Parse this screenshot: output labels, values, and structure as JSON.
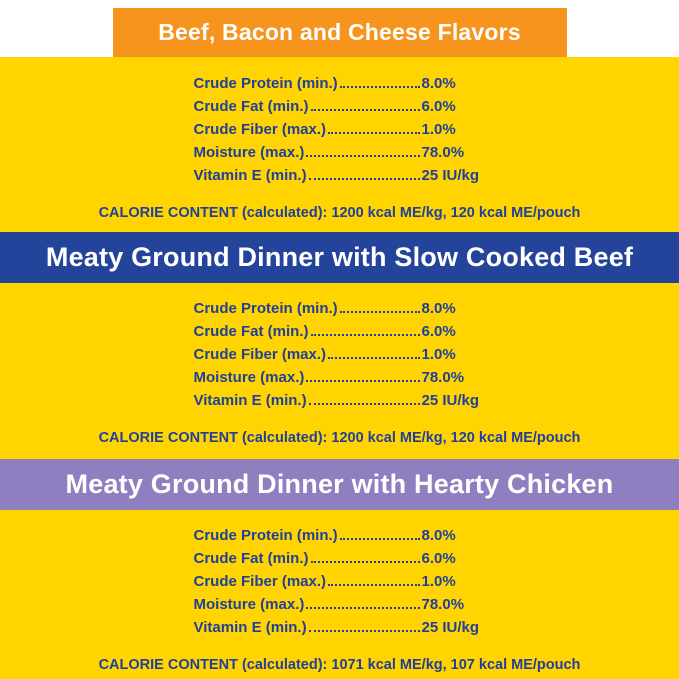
{
  "colors": {
    "yellow": "#FFD400",
    "orange": "#F7941D",
    "blue": "#24449B",
    "purple": "#8F7FC0",
    "navy_text": "#21409A",
    "banner_text": "#FFFFFF"
  },
  "sections": [
    {
      "title": "Beef, Bacon and Cheese Flavors",
      "rows": [
        {
          "label": "Crude Protein (min.)",
          "value": "8.0%"
        },
        {
          "label": "Crude Fat (min.)",
          "value": "6.0%"
        },
        {
          "label": "Crude Fiber (max.)",
          "value": "1.0%"
        },
        {
          "label": "Moisture (max.)",
          "value": "78.0%"
        },
        {
          "label": "Vitamin E (min.)",
          "value": "25 IU/kg"
        }
      ],
      "calories": "CALORIE CONTENT (calculated): 1200 kcal ME/kg, 120 kcal ME/pouch"
    },
    {
      "title": "Meaty Ground Dinner with Slow Cooked Beef",
      "rows": [
        {
          "label": "Crude Protein (min.)",
          "value": "8.0%"
        },
        {
          "label": "Crude Fat (min.)",
          "value": "6.0%"
        },
        {
          "label": "Crude Fiber (max.)",
          "value": "1.0%"
        },
        {
          "label": "Moisture (max.)",
          "value": "78.0%"
        },
        {
          "label": "Vitamin E (min.)",
          "value": "25 IU/kg"
        }
      ],
      "calories": "CALORIE CONTENT (calculated): 1200 kcal ME/kg, 120 kcal ME/pouch"
    },
    {
      "title": "Meaty Ground Dinner with Hearty Chicken",
      "rows": [
        {
          "label": "Crude Protein (min.)",
          "value": "8.0%"
        },
        {
          "label": "Crude Fat (min.)",
          "value": "6.0%"
        },
        {
          "label": "Crude Fiber (max.)",
          "value": "1.0%"
        },
        {
          "label": "Moisture (max.)",
          "value": "78.0%"
        },
        {
          "label": "Vitamin E (min.)",
          "value": "25 IU/kg"
        }
      ],
      "calories": "CALORIE CONTENT (calculated): 1071 kcal ME/kg, 107 kcal ME/pouch"
    }
  ]
}
